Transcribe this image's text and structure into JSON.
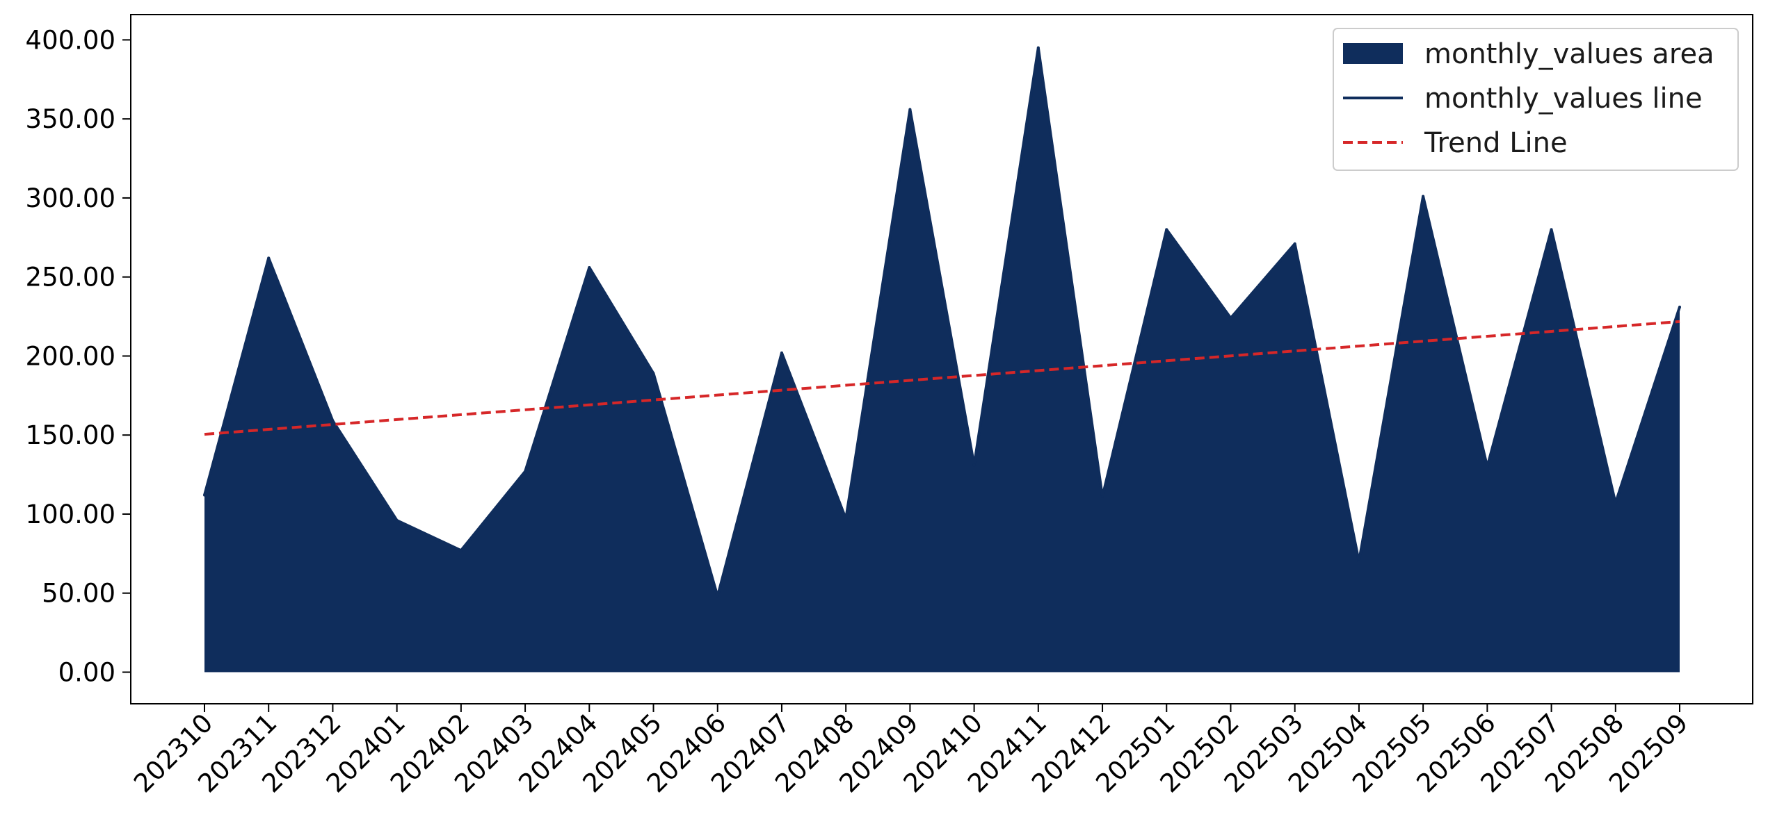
{
  "chart_data": {
    "type": "area",
    "categories": [
      "202310",
      "202311",
      "202312",
      "202401",
      "202402",
      "202403",
      "202404",
      "202405",
      "202406",
      "202407",
      "202408",
      "202409",
      "202410",
      "202411",
      "202412",
      "202501",
      "202502",
      "202503",
      "202504",
      "202505",
      "202506",
      "202507",
      "202508",
      "202509"
    ],
    "series": [
      {
        "name": "monthly_values area",
        "kind": "area",
        "values": [
          112,
          262,
          159,
          96,
          77,
          127,
          256,
          189,
          48,
          202,
          97,
          356,
          131,
          395,
          111,
          280,
          224,
          271,
          70,
          301,
          130,
          280,
          107,
          231
        ]
      },
      {
        "name": "monthly_values line",
        "kind": "line",
        "values": [
          112,
          262,
          159,
          96,
          77,
          127,
          256,
          189,
          48,
          202,
          97,
          356,
          131,
          395,
          111,
          280,
          224,
          271,
          70,
          301,
          130,
          280,
          107,
          231
        ]
      },
      {
        "name": "Trend Line",
        "kind": "line",
        "style": "dashed",
        "values": [
          150.5,
          153.6,
          156.7,
          159.8,
          162.9,
          166.0,
          169.1,
          172.2,
          175.3,
          178.4,
          181.5,
          184.6,
          187.7,
          190.8,
          193.9,
          197.0,
          200.1,
          203.2,
          206.3,
          209.4,
          212.5,
          215.6,
          218.7,
          221.8
        ]
      }
    ],
    "y_ticks": [
      "0.00",
      "50.00",
      "100.00",
      "150.00",
      "200.00",
      "250.00",
      "300.00",
      "350.00",
      "400.00"
    ],
    "ylim": [
      -20,
      416
    ],
    "legend_position": "top-right",
    "grid": false,
    "colors": {
      "area": "#0f2d5c",
      "line": "#0f2d5c",
      "trend": "#d62728"
    }
  }
}
